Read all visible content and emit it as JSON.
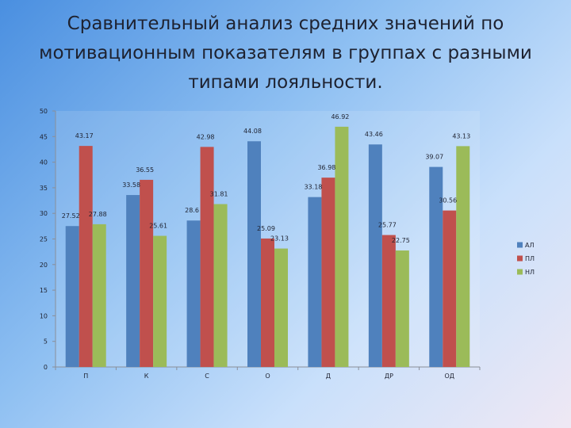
{
  "chart_data": {
    "type": "bar",
    "title": "Сравнительный анализ средних значений по мотивационным показателям в группах с разными типами лояльности.",
    "categories": [
      "П",
      "К",
      "С",
      "О",
      "Д",
      "ДР",
      "ОД"
    ],
    "series": [
      {
        "name": "АЛ",
        "color": "#4f81bd",
        "values": [
          27.52,
          33.58,
          28.6,
          44.08,
          33.18,
          43.46,
          39.07
        ]
      },
      {
        "name": "ПЛ",
        "color": "#c0504d",
        "values": [
          43.17,
          36.55,
          42.98,
          25.09,
          36.98,
          25.77,
          30.56
        ]
      },
      {
        "name": "НЛ",
        "color": "#9bbb59",
        "values": [
          27.88,
          25.61,
          31.81,
          23.13,
          46.92,
          22.75,
          43.13
        ]
      }
    ],
    "data_labels": [
      [
        "27.52",
        "33.58",
        "28.6",
        "44.08",
        "33.18",
        "43.46",
        "39.07"
      ],
      [
        "43.17",
        "36.55",
        "42.98",
        "25.09",
        "36.98",
        "25.77",
        "30.56"
      ],
      [
        "27.88",
        "25.61",
        "31.81",
        "23.13",
        "46.92",
        "22.75",
        "43.13"
      ]
    ],
    "ylim": [
      0,
      50
    ],
    "yticks": [
      0,
      5,
      10,
      15,
      20,
      25,
      30,
      35,
      40,
      45,
      50
    ],
    "xlabel": "",
    "ylabel": "",
    "grid": false,
    "legend": "right"
  }
}
